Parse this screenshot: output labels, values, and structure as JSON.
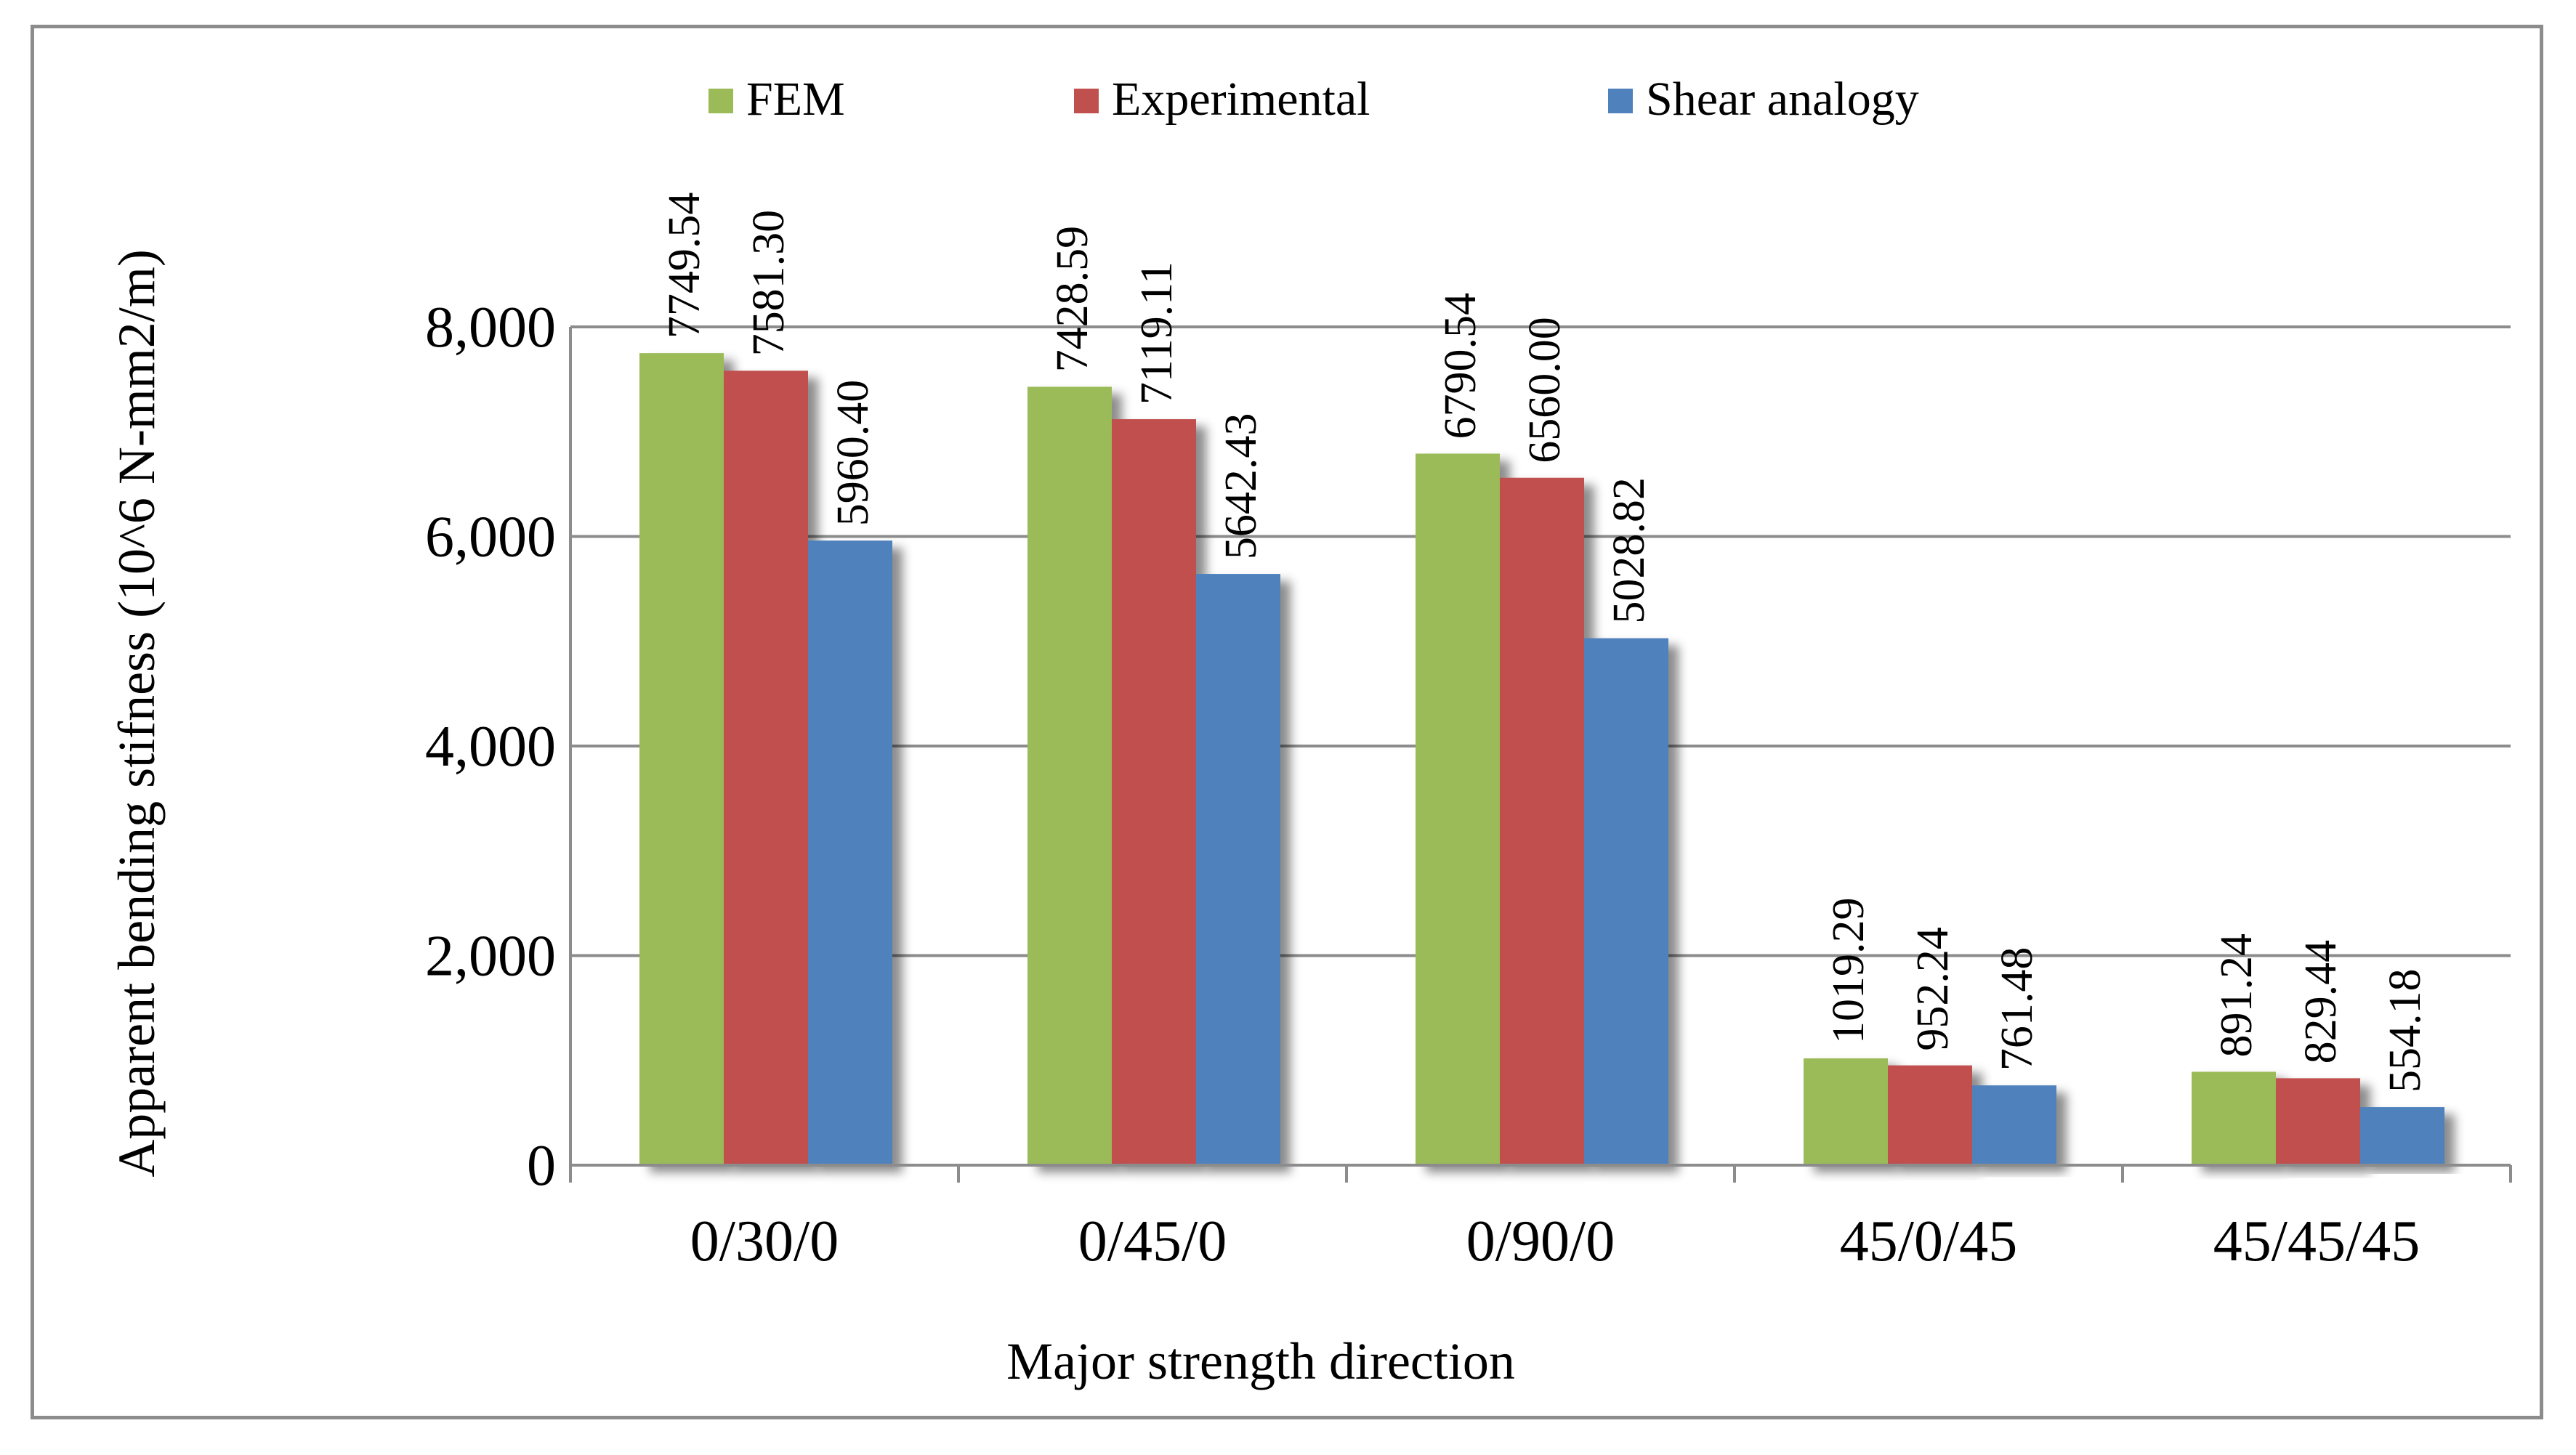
{
  "chart_data": {
    "type": "bar",
    "title": "",
    "xlabel": "Major strength direction",
    "ylabel": "Apparent bending stifness (10^6 N-mm2/m)",
    "categories": [
      "0/30/0",
      "0/45/0",
      "0/90/0",
      "45/0/45",
      "45/45/45"
    ],
    "series": [
      {
        "name": "FEM",
        "color": "#9bbb59",
        "values": [
          7749.54,
          7428.59,
          6790.54,
          1019.29,
          891.24
        ],
        "labels": [
          "7749.54",
          "7428.59",
          "6790.54",
          "1019.29",
          "891.24"
        ]
      },
      {
        "name": "Experimental",
        "color": "#c0504d",
        "values": [
          7581.3,
          7119.11,
          6560.0,
          952.24,
          829.44
        ],
        "labels": [
          "7581.30",
          "7119.11",
          "6560.00",
          "952.24",
          "829.44"
        ]
      },
      {
        "name": "Shear analogy",
        "color": "#4f81bd",
        "values": [
          5960.4,
          5642.43,
          5028.82,
          761.48,
          554.18
        ],
        "labels": [
          "5960.40",
          "5642.43",
          "5028.82",
          "761.48",
          "554.18"
        ]
      }
    ],
    "ylim": [
      0,
      8000
    ],
    "yticks": [
      0,
      2000,
      4000,
      6000,
      8000
    ],
    "ytick_labels": [
      "0",
      "2,000",
      "4,000",
      "6,000",
      "8,000"
    ],
    "grid": true,
    "legend_position": "top"
  }
}
